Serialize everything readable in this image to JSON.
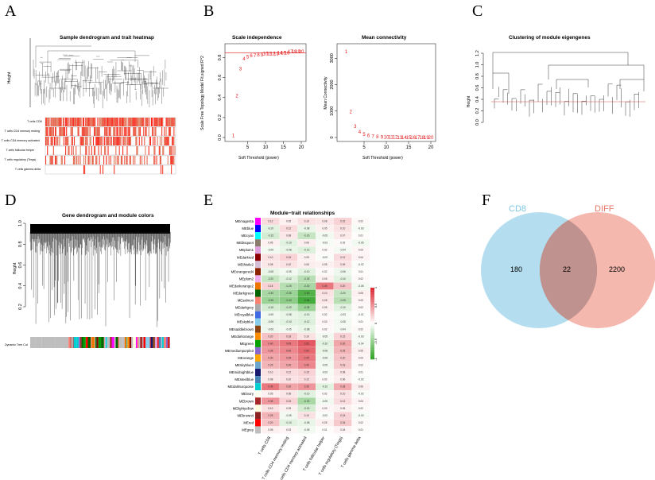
{
  "panel_labels": [
    "A",
    "B",
    "C",
    "D",
    "E",
    "F"
  ],
  "panel_a": {
    "title": "Sample dendrogram and trait heatmap",
    "y_label": "Height",
    "traits": [
      "T cells CD8",
      "T cells CD4 memory resting",
      "T cells CD4 memory activated",
      "T cells follicular helper",
      "T cells regulatory (Tregs)",
      "T cells gamma delta"
    ]
  },
  "chart_data": [
    {
      "type": "scatter",
      "title": "Scale independence",
      "xlabel": "Soft Threshold (power)",
      "ylabel": "Scale Free Topology Model Fit,signed R^2",
      "xlim": [
        0,
        20
      ],
      "ylim": [
        0,
        0.9
      ],
      "x_ticks": [
        "5",
        "10",
        "15",
        "20"
      ],
      "y_ticks": [
        "0.0",
        "0.2",
        "0.4",
        "0.6",
        "0.8"
      ],
      "threshold_line": 0.85,
      "x": [
        1,
        2,
        3,
        4,
        5,
        6,
        7,
        8,
        9,
        10,
        11,
        12,
        13,
        14,
        15,
        16,
        17,
        18,
        19,
        20
      ],
      "y": [
        0.02,
        0.42,
        0.69,
        0.79,
        0.81,
        0.82,
        0.82,
        0.83,
        0.83,
        0.84,
        0.84,
        0.84,
        0.84,
        0.85,
        0.85,
        0.85,
        0.86,
        0.86,
        0.86,
        0.86
      ],
      "labels": [
        "1",
        "2",
        "3",
        "4",
        "5",
        "6",
        "7",
        "8",
        "9",
        "10",
        "11",
        "12",
        "13",
        "14",
        "15",
        "16",
        "17",
        "18",
        "19",
        "20"
      ]
    },
    {
      "type": "scatter",
      "title": "Mean connectivity",
      "xlabel": "Soft Threshold (power)",
      "ylabel": "Mean Connectivity",
      "xlim": [
        0,
        20
      ],
      "ylim": [
        0,
        3400
      ],
      "x_ticks": [
        "5",
        "10",
        "15",
        "20"
      ],
      "y_ticks": [
        "0",
        "1000",
        "2000",
        "3000"
      ],
      "x": [
        1,
        2,
        3,
        4,
        5,
        6,
        7,
        8,
        9,
        10,
        11,
        12,
        13,
        14,
        15,
        16,
        17,
        18,
        19,
        20
      ],
      "y": [
        3250,
        980,
        420,
        210,
        120,
        70,
        45,
        30,
        20,
        14,
        10,
        8,
        6,
        5,
        4,
        3,
        3,
        2,
        2,
        2
      ],
      "labels": [
        "1",
        "2",
        "3",
        "4",
        "5",
        "6",
        "7",
        "8",
        "9",
        "10",
        "11",
        "12",
        "13",
        "14",
        "15",
        "16",
        "17",
        "18",
        "19",
        "20"
      ]
    },
    {
      "type": "heatmap",
      "title": "Module−trait relationships",
      "rows": [
        "MEmagenta",
        "MEblue",
        "MEcyan",
        "MEbisque4",
        "MEplum1",
        "MEdarkred",
        "MEthistle2",
        "MEorangered4",
        "MEplum2",
        "MEdarkorange2",
        "MEdarkgreen",
        "MEsalmon",
        "MEdarkgrey",
        "MEroyalblue",
        "MEskyblue",
        "MEsaddlebrown",
        "MEdarkorange",
        "MEgreen",
        "MEmediumpurple3",
        "MEorange",
        "MEskyblue3",
        "MEmidnightblue",
        "MEsteelblue",
        "MEdarkturquoise",
        "MEivory",
        "MEbrown",
        "MElightyellow",
        "MEbrown4",
        "MEred",
        "MEgrey"
      ],
      "row_colors": [
        "#ff00ff",
        "#0000ff",
        "#00ffff",
        "#8b7d6b",
        "#dda0dd",
        "#8b0000",
        "#d8bfd8",
        "#8b2500",
        "#eeaeee",
        "#ee7600",
        "#006400",
        "#fa8072",
        "#a9a9a9",
        "#4169e1",
        "#87ceeb",
        "#8b4513",
        "#ff8c00",
        "#00a000",
        "#8968cd",
        "#ffa500",
        "#6ca6cd",
        "#191970",
        "#4682b4",
        "#00ced1",
        "#fffff0",
        "#a52a2a",
        "#ffffe0",
        "#8b2323",
        "#ff0000",
        "#bebebe"
      ],
      "columns": [
        "T cells CD8",
        "T cells CD4 memory resting",
        "T cells CD4 memory activated",
        "T cells follicular helper",
        "T cells regulatory (Tregs)",
        "T cells gamma delta"
      ],
      "legend_ticks": [
        "1",
        "0.5",
        "0",
        "-0.5",
        "-1"
      ],
      "values": [
        [
          0.12,
          0.05,
          0.1,
          0.08,
          0.15,
          0.02
        ],
        [
          -0.1,
          0.12,
          -0.08,
          0.05,
          0.1,
          -0.03
        ],
        [
          -0.15,
          0.08,
          -0.2,
          -0.05,
          0.07,
          0.01
        ],
        [
          0.05,
          -0.1,
          0.06,
          -0.03,
          0.02,
          -0.05
        ],
        [
          -0.05,
          -0.08,
          -0.12,
          0.02,
          -0.04,
          0.03
        ],
        [
          0.1,
          0.15,
          0.05,
          -0.02,
          0.12,
          0.04
        ],
        [
          0.08,
          0.1,
          0.06,
          0.05,
          0.09,
          -0.02
        ],
        [
          -0.08,
          -0.05,
          -0.1,
          0.02,
          -0.06,
          0.01
        ],
        [
          -0.2,
          -0.12,
          -0.25,
          0.05,
          -0.1,
          0.02
        ],
        [
          0.15,
          -0.25,
          -0.3,
          0.45,
          0.2,
          -0.05
        ],
        [
          -0.3,
          -0.35,
          -0.6,
          0.1,
          -0.2,
          0.05
        ],
        [
          -0.35,
          -0.4,
          -0.65,
          0.08,
          -0.25,
          0.03
        ],
        [
          -0.15,
          -0.2,
          -0.35,
          0.05,
          -0.1,
          0.02
        ],
        [
          -0.05,
          -0.08,
          -0.1,
          0.02,
          -0.03,
          -0.01
        ],
        [
          -0.08,
          -0.1,
          -0.12,
          0.03,
          -0.05,
          0.01
        ],
        [
          -0.06,
          -0.05,
          -0.08,
          0.02,
          -0.04,
          0.02
        ],
        [
          0.2,
          0.18,
          0.1,
          -0.05,
          0.15,
          -0.03
        ],
        [
          0.4,
          0.45,
          0.55,
          -0.1,
          0.3,
          -0.04
        ],
        [
          0.35,
          0.4,
          0.5,
          -0.08,
          0.25,
          0.05
        ],
        [
          0.3,
          0.35,
          0.45,
          -0.06,
          0.2,
          0.03
        ],
        [
          0.25,
          0.3,
          0.4,
          -0.05,
          0.18,
          0.02
        ],
        [
          0.1,
          0.12,
          0.15,
          -0.03,
          0.08,
          0.01
        ],
        [
          0.08,
          0.1,
          0.12,
          0.02,
          0.06,
          -0.02
        ],
        [
          0.45,
          0.3,
          0.35,
          -0.1,
          0.28,
          0.06
        ],
        [
          0.05,
          0.08,
          -0.1,
          0.02,
          0.1,
          -0.02
        ],
        [
          0.35,
          0.15,
          -0.3,
          -0.05,
          0.12,
          0.04
        ],
        [
          0.1,
          0.05,
          -0.15,
          0.03,
          0.05,
          0.02
        ],
        [
          0.25,
          -0.05,
          0.1,
          -0.02,
          0.15,
          -0.03
        ],
        [
          0.2,
          -0.1,
          -0.08,
          0.05,
          0.18,
          0.02
        ],
        [
          0.05,
          0.03,
          -0.05,
          0.01,
          0.04,
          0.01
        ]
      ]
    },
    {
      "type": "venn",
      "sets": [
        {
          "name": "CD8",
          "color": "#9bd3ea",
          "only": 180
        },
        {
          "name": "DIFF",
          "color": "#f1a094",
          "only": 2200
        }
      ],
      "intersection": 22
    }
  ],
  "panel_c": {
    "title": "Clustering of module eigengenes",
    "y_label": "Height",
    "y_ticks": [
      "0.0",
      "0.2",
      "0.4",
      "0.6",
      "0.8",
      "1.0",
      "1.2"
    ]
  },
  "panel_d": {
    "title": "Gene dendrogram and module colors",
    "y_label": "Height",
    "y_ticks": [
      "0.2",
      "0.4",
      "0.6",
      "0.8",
      "1.0"
    ],
    "color_bar_label": "Dynamic Tree Cut"
  },
  "panel_f": {
    "set1_label": "CD8",
    "set2_label": "DIFF",
    "set1_only": "180",
    "intersection": "22",
    "set2_only": "2200",
    "set1_color": "#9bd3ea",
    "set2_color": "#f1a094"
  }
}
